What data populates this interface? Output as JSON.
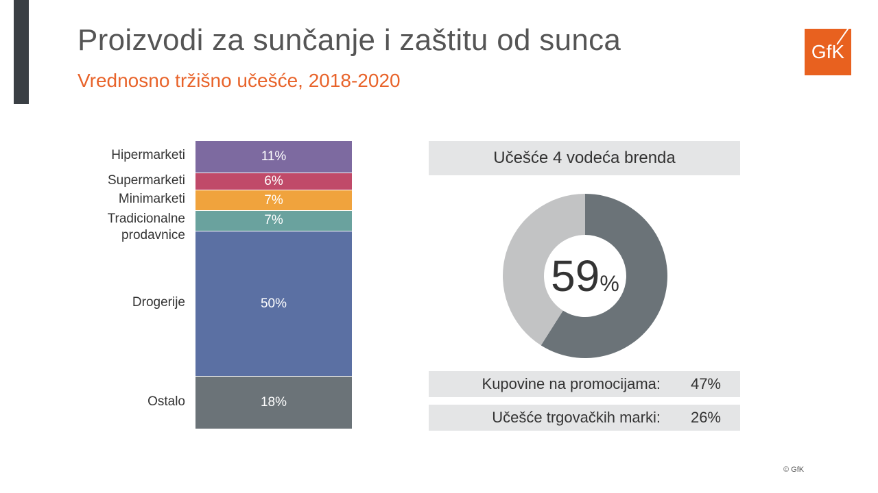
{
  "header": {
    "title": "Proizvodi za sunčanje i zaštitu od sunca",
    "subtitle": "Vrednosno tržišno učešće, 2018-2020",
    "logo_text": "GfK",
    "accent_color": "#e8632a"
  },
  "chart_data": [
    {
      "type": "bar",
      "stacked": true,
      "categories": [
        "Hipermarketi",
        "Supermarketi",
        "Minimarketi",
        "Tradicionalne prodavnice",
        "Drogerije",
        "Ostalo"
      ],
      "values": [
        11,
        6,
        7,
        7,
        50,
        18
      ],
      "value_labels": [
        "11%",
        "6%",
        "7%",
        "7%",
        "50%",
        "18%"
      ],
      "colors": [
        "#7d6aa0",
        "#c04a69",
        "#f0a33d",
        "#6aa29e",
        "#5b70a3",
        "#6b7378"
      ]
    },
    {
      "type": "pie",
      "donut": true,
      "title": "Učešće 4 vodeća brenda",
      "values": [
        59,
        41
      ],
      "colors": [
        "#6b7378",
        "#c2c3c4"
      ],
      "center_value": "59",
      "center_unit": "%"
    }
  ],
  "stats": [
    {
      "label": "Kupovine na promocijama:",
      "value": "47%"
    },
    {
      "label": "Učešće trgovačkih marki:",
      "value": "26%"
    }
  ],
  "footer": {
    "copyright": "© GfK"
  }
}
